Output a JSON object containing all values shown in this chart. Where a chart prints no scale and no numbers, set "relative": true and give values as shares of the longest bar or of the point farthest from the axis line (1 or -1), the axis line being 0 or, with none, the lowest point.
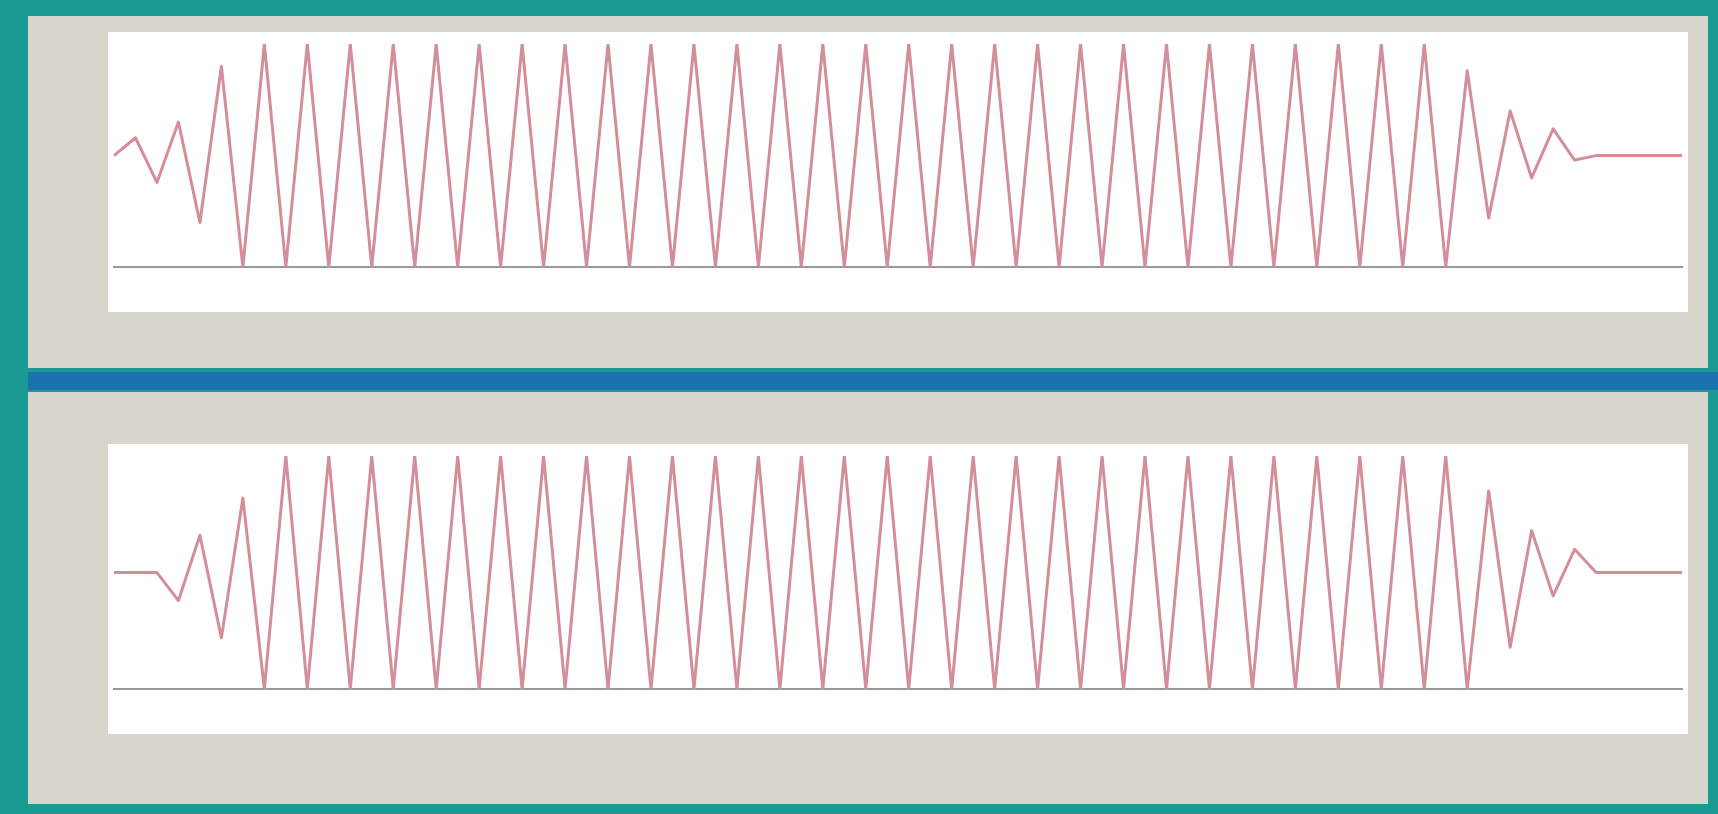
{
  "chart_data": [
    {
      "type": "line",
      "relative": true,
      "categories": [
        null,
        null,
        null,
        null,
        null,
        null,
        null,
        null,
        null,
        null,
        null,
        null,
        null,
        null,
        null,
        null,
        null,
        null,
        null,
        null,
        null,
        null,
        null,
        null,
        null,
        null,
        null,
        null,
        null,
        null,
        null,
        null,
        null,
        null,
        null,
        null,
        null,
        null,
        null,
        null,
        null,
        null,
        null,
        null,
        null,
        null,
        null,
        null,
        null,
        null,
        null,
        null,
        null,
        null,
        null,
        null,
        null,
        null,
        null,
        null,
        null,
        null,
        null,
        null,
        null,
        null,
        null,
        null,
        null,
        null,
        null,
        null,
        null,
        null
      ],
      "series": [
        {
          "color": "#d48e9a",
          "values": [
            0.5,
            0.58,
            0.38,
            0.65,
            0.2,
            0.9,
            0,
            1,
            0,
            1,
            0,
            1,
            0,
            1,
            0,
            1,
            0,
            1,
            0,
            1,
            0,
            1,
            0,
            1,
            0,
            1,
            0,
            1,
            0,
            1,
            0,
            1,
            0,
            1,
            0,
            1,
            0,
            1,
            0,
            1,
            0,
            1,
            0,
            1,
            0,
            1,
            0,
            1,
            0,
            1,
            0,
            1,
            0,
            1,
            0,
            1,
            0,
            1,
            0,
            1,
            0,
            1,
            0,
            0.88,
            0.22,
            0.7,
            0.4,
            0.62,
            0.48,
            0.5,
            0.5,
            0.5,
            0.5,
            0.5
          ]
        }
      ],
      "grid": false,
      "legend": false,
      "marker": "none",
      "line_style": "solid"
    },
    {
      "type": "line",
      "relative": true,
      "categories": [
        null,
        null,
        null,
        null,
        null,
        null,
        null,
        null,
        null,
        null,
        null,
        null,
        null,
        null,
        null,
        null,
        null,
        null,
        null,
        null,
        null,
        null,
        null,
        null,
        null,
        null,
        null,
        null,
        null,
        null,
        null,
        null,
        null,
        null,
        null,
        null,
        null,
        null,
        null,
        null,
        null,
        null,
        null,
        null,
        null,
        null,
        null,
        null,
        null,
        null,
        null,
        null,
        null,
        null,
        null,
        null,
        null,
        null,
        null,
        null,
        null,
        null,
        null,
        null,
        null,
        null,
        null,
        null,
        null,
        null,
        null,
        null,
        null,
        null
      ],
      "series": [
        {
          "color": "#d48e9a",
          "values": [
            0.5,
            0.5,
            0.5,
            0.38,
            0.66,
            0.22,
            0.82,
            0,
            1,
            0,
            1,
            0,
            1,
            0,
            1,
            0,
            1,
            0,
            1,
            0,
            1,
            0,
            1,
            0,
            1,
            0,
            1,
            0,
            1,
            0,
            1,
            0,
            1,
            0,
            1,
            0,
            1,
            0,
            1,
            0,
            1,
            0,
            1,
            0,
            1,
            0,
            1,
            0,
            1,
            0,
            1,
            0,
            1,
            0,
            1,
            0,
            1,
            0,
            1,
            0,
            1,
            0,
            1,
            0,
            0.85,
            0.18,
            0.68,
            0.4,
            0.6,
            0.5,
            0.5,
            0.5,
            0.5,
            0.5
          ]
        }
      ],
      "grid": false,
      "legend": false,
      "marker": "none",
      "line_style": "solid"
    }
  ]
}
